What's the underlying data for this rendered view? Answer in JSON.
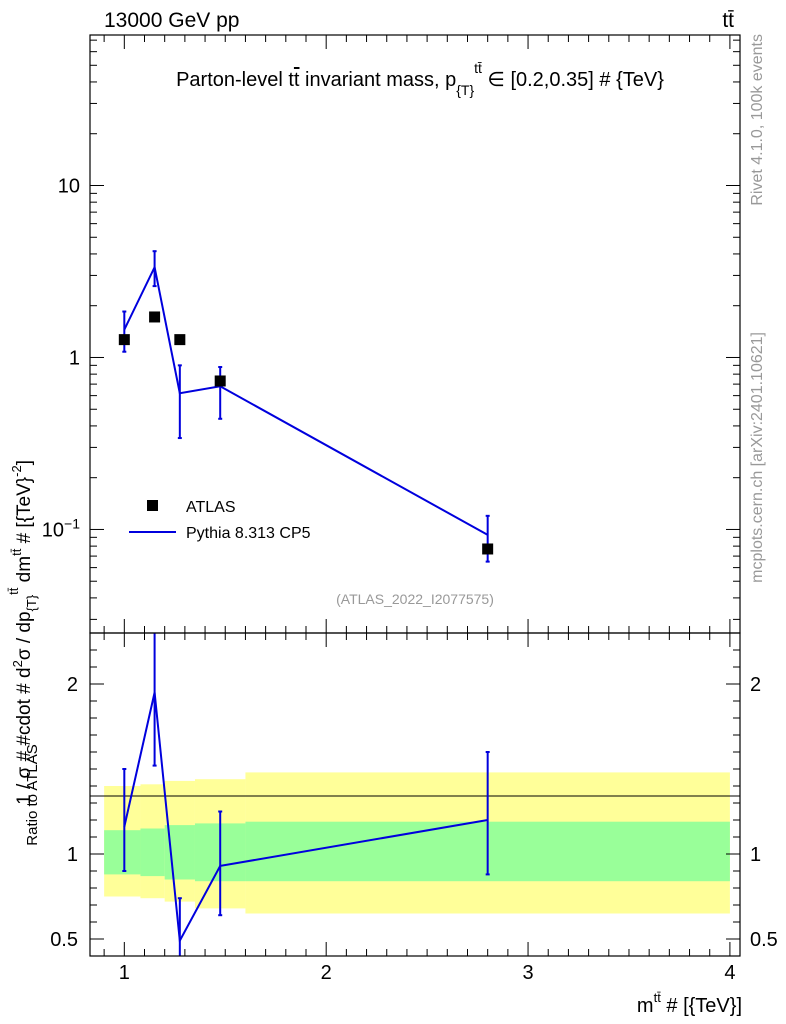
{
  "header": {
    "energy_label": "13000 GeV pp",
    "process_label": "tt̄",
    "rivet_label": "Rivet 4.1.0,  100k events",
    "mcplots_label": "mcplots.cern.ch [arXiv:2401.10621]"
  },
  "chart_data": [
    {
      "panel": "main",
      "type": "scatter",
      "title": "Parton-level tt̄ invariant mass, p_{T}^{tt̄} ∈ [0.2,0.35] # {TeV}",
      "title_parts": {
        "prefix": "Parton-level t",
        "tbar": "t",
        "mid": " invariant mass, p",
        "sub": "{T}",
        "sup": "tt̄",
        "suffix": " ∈ [0.2,0.35] # {TeV}"
      },
      "ylabel": "1 / σ # #cdot # d²σ / dp_{T}^{tt̄} dm^{tt̄} # [{TeV}^{-2}]",
      "ylabel_parts": {
        "a": "1 / σ # #cdot # d",
        "a_sup": "2",
        "b": "σ / dp",
        "b_sub": "{T}",
        "b_sup": "tt̄",
        "c": " dm",
        "c_sup": "tt̄",
        "d": " # [{TeV}",
        "d_sup": "-2",
        "e": "]"
      },
      "yscale": "log",
      "ylim": [
        0.025,
        75
      ],
      "xlim": [
        0.83,
        4.05
      ],
      "yticks": [
        {
          "value": 0.1,
          "label": "10⁻¹"
        },
        {
          "value": 1,
          "label": "1"
        },
        {
          "value": 10,
          "label": "10"
        }
      ],
      "watermark": "(ATLAS_2022_I2077575)",
      "legend": [
        {
          "name": "ATLAS",
          "marker": "square",
          "color": "#000000"
        },
        {
          "name": "Pythia 8.313 CP5",
          "marker": "line",
          "color": "#0000dd"
        }
      ],
      "series": [
        {
          "name": "ATLAS",
          "x": [
            1.0,
            1.15,
            1.275,
            1.475,
            2.8
          ],
          "y": [
            1.27,
            1.72,
            1.27,
            0.73,
            0.077
          ]
        },
        {
          "name": "Pythia 8.313 CP5",
          "x": [
            1.0,
            1.15,
            1.275,
            1.475,
            2.8
          ],
          "y": [
            1.45,
            3.35,
            0.62,
            0.68,
            0.093
          ],
          "yerr_low": [
            1.08,
            2.6,
            0.34,
            0.44,
            0.065
          ],
          "yerr_high": [
            1.85,
            4.15,
            0.9,
            0.88,
            0.12
          ]
        }
      ]
    },
    {
      "panel": "ratio",
      "type": "line",
      "ylabel": "Ratio to ATLAS",
      "ylim": [
        0.4,
        2.3
      ],
      "xlim": [
        0.83,
        4.05
      ],
      "xlabel": "m^{tt̄} # [{TeV}]",
      "xlabel_parts": {
        "a": "m",
        "a_sup": "tt̄",
        "b": " # [{TeV}]"
      },
      "xticks": [
        1,
        2,
        3,
        4
      ],
      "yticks": [
        0.5,
        1,
        2
      ],
      "bins": [
        {
          "xlo": 0.9,
          "xhi": 1.08,
          "stat_lo": 0.88,
          "stat_hi": 1.14,
          "tot_lo": 0.75,
          "tot_hi": 1.4
        },
        {
          "xlo": 1.08,
          "xhi": 1.2,
          "stat_lo": 0.87,
          "stat_hi": 1.15,
          "tot_lo": 0.74,
          "tot_hi": 1.41
        },
        {
          "xlo": 1.2,
          "xhi": 1.35,
          "stat_lo": 0.85,
          "stat_hi": 1.17,
          "tot_lo": 0.72,
          "tot_hi": 1.43
        },
        {
          "xlo": 1.35,
          "xhi": 1.6,
          "stat_lo": 0.84,
          "stat_hi": 1.18,
          "tot_lo": 0.68,
          "tot_hi": 1.44
        },
        {
          "xlo": 1.6,
          "xhi": 4.0,
          "stat_lo": 0.84,
          "stat_hi": 1.19,
          "tot_lo": 0.65,
          "tot_hi": 1.48
        }
      ],
      "series": [
        {
          "name": "Pythia 8.313 CP5 / ATLAS",
          "x": [
            1.0,
            1.15,
            1.275,
            1.475,
            2.8
          ],
          "y": [
            1.16,
            1.95,
            0.49,
            0.93,
            1.2
          ],
          "yerr_low": [
            0.9,
            1.52,
            0.28,
            0.64,
            0.88
          ],
          "yerr_high": [
            1.5,
            2.42,
            0.74,
            1.25,
            1.6
          ]
        }
      ]
    }
  ],
  "colors": {
    "model": "#0000dd",
    "data": "#000000",
    "band_stat": "#99ff99",
    "band_total": "#ffff99",
    "side_text": "#999999"
  }
}
